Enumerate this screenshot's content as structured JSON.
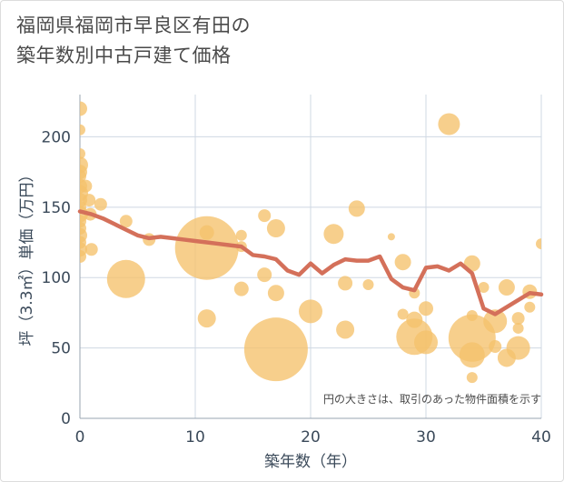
{
  "title_lines": [
    "福岡県福岡市早良区有田の",
    "築年数別中古戸建て価格"
  ],
  "colors": {
    "bubble": "#f5c16c",
    "line": "#d4705a",
    "grid": "#cfd8e3",
    "plot_bg": "#ffffff"
  },
  "chart_data": {
    "type": "scatter",
    "title": "福岡県福岡市早良区有田の築年数別中古戸建て価格",
    "xlabel": "築年数（年）",
    "ylabel": "坪（3.3㎡）単価（万円）",
    "xlim": [
      0,
      40
    ],
    "ylim": [
      0,
      230
    ],
    "x_ticks": [
      0,
      10,
      20,
      30,
      40
    ],
    "y_ticks": [
      0,
      50,
      100,
      150,
      200
    ],
    "grid": true,
    "note": "円の大きさは、取引のあった物件面積を示す",
    "bubbles": [
      {
        "x": 0,
        "y": 220,
        "r": 8
      },
      {
        "x": 0,
        "y": 205,
        "r": 6
      },
      {
        "x": 0,
        "y": 188,
        "r": 6
      },
      {
        "x": 0,
        "y": 180,
        "r": 9
      },
      {
        "x": 0,
        "y": 175,
        "r": 8
      },
      {
        "x": 0,
        "y": 172,
        "r": 7
      },
      {
        "x": 0,
        "y": 165,
        "r": 8
      },
      {
        "x": 0,
        "y": 160,
        "r": 9
      },
      {
        "x": 0,
        "y": 155,
        "r": 8
      },
      {
        "x": 0,
        "y": 150,
        "r": 7
      },
      {
        "x": 0,
        "y": 145,
        "r": 9
      },
      {
        "x": 0,
        "y": 140,
        "r": 7
      },
      {
        "x": 0,
        "y": 135,
        "r": 7
      },
      {
        "x": 0,
        "y": 130,
        "r": 8
      },
      {
        "x": 0,
        "y": 125,
        "r": 7
      },
      {
        "x": 0,
        "y": 120,
        "r": 8
      },
      {
        "x": 0,
        "y": 115,
        "r": 7
      },
      {
        "x": 0.5,
        "y": 165,
        "r": 7
      },
      {
        "x": 0.8,
        "y": 155,
        "r": 7
      },
      {
        "x": 0.9,
        "y": 145,
        "r": 7
      },
      {
        "x": 1,
        "y": 120,
        "r": 7
      },
      {
        "x": 1.8,
        "y": 152,
        "r": 7
      },
      {
        "x": 4,
        "y": 140,
        "r": 7
      },
      {
        "x": 4,
        "y": 99,
        "r": 21
      },
      {
        "x": 6,
        "y": 127,
        "r": 7
      },
      {
        "x": 11,
        "y": 121,
        "r": 35
      },
      {
        "x": 11,
        "y": 132,
        "r": 8
      },
      {
        "x": 11,
        "y": 71,
        "r": 10
      },
      {
        "x": 14,
        "y": 130,
        "r": 6
      },
      {
        "x": 14,
        "y": 122,
        "r": 6
      },
      {
        "x": 14,
        "y": 92,
        "r": 8
      },
      {
        "x": 16,
        "y": 144,
        "r": 7
      },
      {
        "x": 16,
        "y": 102,
        "r": 8
      },
      {
        "x": 17,
        "y": 135,
        "r": 10
      },
      {
        "x": 17,
        "y": 89,
        "r": 9
      },
      {
        "x": 17,
        "y": 49,
        "r": 35
      },
      {
        "x": 20,
        "y": 76,
        "r": 13
      },
      {
        "x": 22,
        "y": 131,
        "r": 11
      },
      {
        "x": 23,
        "y": 96,
        "r": 8
      },
      {
        "x": 23,
        "y": 63,
        "r": 10
      },
      {
        "x": 24,
        "y": 149,
        "r": 9
      },
      {
        "x": 25,
        "y": 95,
        "r": 6
      },
      {
        "x": 27,
        "y": 129,
        "r": 4
      },
      {
        "x": 28,
        "y": 111,
        "r": 9
      },
      {
        "x": 28,
        "y": 74,
        "r": 6
      },
      {
        "x": 29,
        "y": 89,
        "r": 6
      },
      {
        "x": 29,
        "y": 70,
        "r": 9
      },
      {
        "x": 29,
        "y": 58,
        "r": 20
      },
      {
        "x": 30,
        "y": 78,
        "r": 8
      },
      {
        "x": 30,
        "y": 54,
        "r": 13
      },
      {
        "x": 32,
        "y": 209,
        "r": 12
      },
      {
        "x": 34,
        "y": 110,
        "r": 9
      },
      {
        "x": 34,
        "y": 73,
        "r": 6
      },
      {
        "x": 34,
        "y": 57,
        "r": 26
      },
      {
        "x": 34,
        "y": 45,
        "r": 14
      },
      {
        "x": 34,
        "y": 29,
        "r": 6
      },
      {
        "x": 35,
        "y": 93,
        "r": 6
      },
      {
        "x": 36,
        "y": 69,
        "r": 13
      },
      {
        "x": 36,
        "y": 51,
        "r": 7
      },
      {
        "x": 37,
        "y": 93,
        "r": 9
      },
      {
        "x": 37,
        "y": 43,
        "r": 10
      },
      {
        "x": 38,
        "y": 71,
        "r": 7
      },
      {
        "x": 38,
        "y": 64,
        "r": 6
      },
      {
        "x": 38,
        "y": 50,
        "r": 13
      },
      {
        "x": 39,
        "y": 90,
        "r": 8
      },
      {
        "x": 39,
        "y": 79,
        "r": 6
      },
      {
        "x": 40,
        "y": 124,
        "r": 6
      }
    ],
    "series": [
      {
        "x": [
          0,
          1,
          2,
          3,
          4,
          5,
          6,
          7,
          8,
          9,
          10,
          11,
          12,
          13,
          14,
          15,
          16,
          17,
          18,
          19,
          20,
          21,
          22,
          23,
          24,
          25,
          26,
          27,
          28,
          29,
          30,
          31,
          32,
          33,
          34,
          35,
          36,
          37,
          38,
          39,
          40
        ],
        "values": [
          147,
          145,
          142,
          138,
          134,
          130,
          128,
          129,
          128,
          127,
          126,
          125,
          124,
          123,
          122,
          116,
          115,
          113,
          105,
          102,
          110,
          103,
          109,
          113,
          112,
          112,
          115,
          99,
          93,
          91,
          107,
          108,
          105,
          110,
          103,
          78,
          74,
          79,
          84,
          89,
          88
        ]
      }
    ]
  }
}
